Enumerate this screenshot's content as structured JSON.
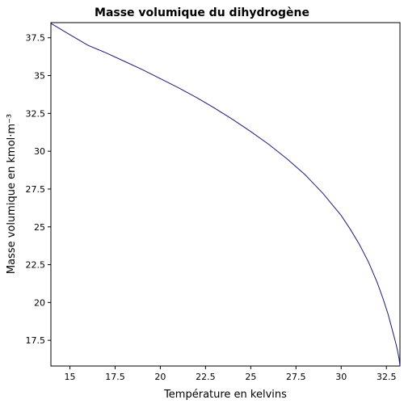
{
  "chart_data": {
    "type": "line",
    "title": "Masse volumique du dihydrogène",
    "xlabel": "Température en kelvins",
    "ylabel": "Masse volumique en kmol·m⁻³",
    "xlim": [
      13.95,
      33.25
    ],
    "ylim": [
      15.8,
      38.5
    ],
    "xticks": [
      15,
      17.5,
      20,
      22.5,
      25,
      27.5,
      30,
      32.5
    ],
    "xtick_labels": [
      "15",
      "17.5",
      "20",
      "22.5",
      "25",
      "27.5",
      "30",
      "32.5"
    ],
    "yticks": [
      17.5,
      20,
      22.5,
      25,
      27.5,
      30,
      32.5,
      35,
      37.5
    ],
    "ytick_labels": [
      "17.5",
      "20",
      "22.5",
      "25",
      "27.5",
      "30",
      "32.5",
      "35",
      "37.5"
    ],
    "grid": false,
    "series": [
      {
        "color": "#1a1a7a",
        "x": [
          13.95,
          15,
          16,
          17,
          18,
          19,
          20,
          21,
          22,
          23,
          24,
          25,
          26,
          27,
          28,
          29,
          30,
          30.5,
          31,
          31.5,
          32,
          32.3,
          32.6,
          32.8,
          33,
          33.1,
          33.2,
          33.25
        ],
        "y": [
          38.45,
          37.7,
          37.0,
          36.5,
          35.95,
          35.4,
          34.8,
          34.2,
          33.55,
          32.85,
          32.1,
          31.3,
          30.45,
          29.5,
          28.45,
          27.2,
          25.75,
          24.85,
          23.85,
          22.7,
          21.3,
          20.3,
          19.2,
          18.3,
          17.4,
          16.9,
          16.3,
          15.8
        ]
      }
    ]
  }
}
